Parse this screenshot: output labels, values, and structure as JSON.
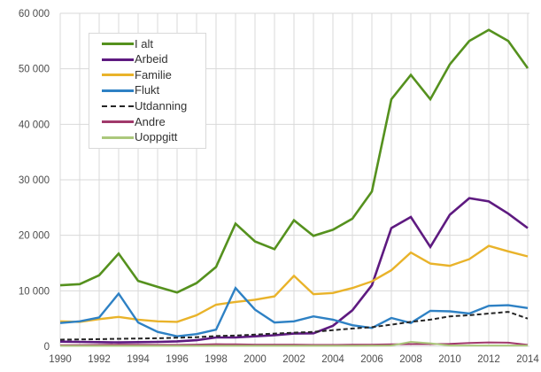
{
  "chart": {
    "background": "#ffffff",
    "grid_color": "#d9d9d9",
    "tick_label_color": "#4d4d4d",
    "legend": {
      "position": "upper-left",
      "background": "#ffffff",
      "border_color": "#d9d9d9",
      "text_color": "#333333"
    }
  },
  "chart_data": {
    "type": "line",
    "title": "",
    "xlabel": "",
    "ylabel": "",
    "x": [
      1990,
      1991,
      1992,
      1993,
      1994,
      1995,
      1996,
      1997,
      1998,
      1999,
      2000,
      2001,
      2002,
      2003,
      2004,
      2005,
      2006,
      2007,
      2008,
      2009,
      2010,
      2011,
      2012,
      2013,
      2014
    ],
    "x_tick_labels": [
      "1990",
      "1992",
      "1994",
      "1996",
      "1998",
      "2000",
      "2002",
      "2004",
      "2006",
      "2008",
      "2010",
      "2012",
      "2014"
    ],
    "y_ticks": [
      0,
      10000,
      20000,
      30000,
      40000,
      50000,
      60000
    ],
    "y_tick_labels": [
      "0",
      "10 000",
      "20 000",
      "30 000",
      "40 000",
      "50 000",
      "60 000"
    ],
    "ylim": [
      0,
      60000
    ],
    "grid": true,
    "legend_position": "upper-left",
    "series": [
      {
        "name": "I alt",
        "color": "#55911e",
        "style": "solid",
        "width": 2.6,
        "values": [
          11000,
          11200,
          12800,
          16700,
          11800,
          10700,
          9700,
          11400,
          14300,
          22100,
          18900,
          17500,
          22700,
          19900,
          21000,
          23000,
          27900,
          44500,
          48900,
          44500,
          50800,
          55000,
          57000,
          55000,
          50100
        ]
      },
      {
        "name": "Arbeid",
        "color": "#5e1a80",
        "style": "solid",
        "width": 2.6,
        "values": [
          850,
          800,
          750,
          700,
          750,
          800,
          900,
          1100,
          1600,
          1600,
          1800,
          2000,
          2300,
          2350,
          3700,
          6500,
          11000,
          21300,
          23300,
          17900,
          23700,
          26700,
          26100,
          23900,
          21300
        ]
      },
      {
        "name": "Familie",
        "color": "#e9b32a",
        "style": "solid",
        "width": 2.4,
        "values": [
          4500,
          4400,
          4900,
          5300,
          4800,
          4500,
          4400,
          5600,
          7500,
          8000,
          8400,
          9000,
          12700,
          9400,
          9600,
          10500,
          11700,
          13700,
          16900,
          14900,
          14500,
          15700,
          18100,
          17100,
          16200
        ]
      },
      {
        "name": "Flukt",
        "color": "#2e81c4",
        "style": "solid",
        "width": 2.4,
        "values": [
          4200,
          4500,
          5200,
          9500,
          4300,
          2600,
          1800,
          2200,
          3000,
          10500,
          6600,
          4300,
          4500,
          5400,
          4800,
          3800,
          3300,
          5100,
          4200,
          6400,
          6300,
          5900,
          7300,
          7400,
          6900
        ]
      },
      {
        "name": "Utdanning",
        "color": "#262626",
        "style": "dashed",
        "width": 2,
        "values": [
          1200,
          1250,
          1300,
          1350,
          1400,
          1450,
          1550,
          1650,
          1850,
          1950,
          2100,
          2300,
          2450,
          2600,
          2900,
          3200,
          3450,
          3900,
          4400,
          4800,
          5400,
          5600,
          5900,
          6200,
          5000
        ]
      },
      {
        "name": "Andre",
        "color": "#a0396b",
        "style": "solid",
        "width": 2,
        "values": [
          200,
          220,
          250,
          300,
          280,
          260,
          250,
          300,
          380,
          350,
          300,
          300,
          300,
          250,
          250,
          300,
          300,
          350,
          400,
          400,
          450,
          600,
          700,
          650,
          250
        ]
      },
      {
        "name": "Uoppgitt",
        "color": "#abc87c",
        "style": "solid",
        "width": 2,
        "values": [
          80,
          80,
          80,
          80,
          80,
          80,
          80,
          80,
          100,
          100,
          100,
          100,
          100,
          100,
          100,
          100,
          120,
          150,
          800,
          550,
          150,
          150,
          150,
          150,
          150
        ]
      }
    ]
  }
}
